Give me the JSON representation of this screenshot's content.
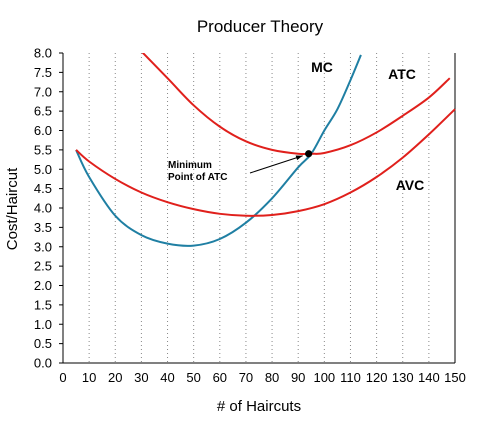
{
  "chart_data": {
    "type": "line",
    "title": "Producer Theory",
    "xlabel": "# of Haircuts",
    "ylabel": "Cost/Haircut",
    "xlim": [
      0,
      150
    ],
    "ylim": [
      0,
      8
    ],
    "x_ticks": [
      0,
      10,
      20,
      30,
      40,
      50,
      60,
      70,
      80,
      90,
      100,
      110,
      120,
      130,
      140,
      150
    ],
    "y_ticks": [
      "0.0",
      "0.5",
      "1.0",
      "1.5",
      "2.0",
      "2.5",
      "3.0",
      "3.5",
      "4.0",
      "4.5",
      "5.0",
      "5.5",
      "6.0",
      "6.5",
      "7.0",
      "7.5",
      "8.0"
    ],
    "grid": {
      "vertical": "dotted",
      "horizontal": false
    },
    "series": [
      {
        "name": "MC",
        "color": "#1f7fa3",
        "points": [
          [
            5,
            5.5
          ],
          [
            10,
            4.8
          ],
          [
            20,
            3.8
          ],
          [
            30,
            3.3
          ],
          [
            40,
            3.08
          ],
          [
            50,
            3.03
          ],
          [
            60,
            3.2
          ],
          [
            70,
            3.62
          ],
          [
            80,
            4.25
          ],
          [
            90,
            5.05
          ],
          [
            95,
            5.4
          ],
          [
            100,
            6.0
          ],
          [
            105,
            6.55
          ],
          [
            110,
            7.3
          ],
          [
            114,
            7.95
          ]
        ]
      },
      {
        "name": "ATC",
        "color": "#e0201c",
        "points": [
          [
            27,
            8.25
          ],
          [
            40,
            7.35
          ],
          [
            50,
            6.65
          ],
          [
            60,
            6.1
          ],
          [
            70,
            5.72
          ],
          [
            80,
            5.5
          ],
          [
            90,
            5.4
          ],
          [
            95,
            5.4
          ],
          [
            100,
            5.42
          ],
          [
            110,
            5.62
          ],
          [
            120,
            5.95
          ],
          [
            130,
            6.38
          ],
          [
            140,
            6.85
          ],
          [
            148,
            7.35
          ]
        ]
      },
      {
        "name": "AVC",
        "color": "#e0201c",
        "points": [
          [
            5,
            5.5
          ],
          [
            10,
            5.2
          ],
          [
            20,
            4.75
          ],
          [
            30,
            4.4
          ],
          [
            40,
            4.15
          ],
          [
            50,
            3.97
          ],
          [
            60,
            3.85
          ],
          [
            70,
            3.8
          ],
          [
            80,
            3.82
          ],
          [
            90,
            3.92
          ],
          [
            100,
            4.1
          ],
          [
            110,
            4.4
          ],
          [
            120,
            4.8
          ],
          [
            130,
            5.3
          ],
          [
            140,
            5.9
          ],
          [
            150,
            6.55
          ]
        ]
      }
    ],
    "annotations": [
      {
        "text_lines": [
          "Minimum",
          "Point of ATC"
        ],
        "points_to": [
          94,
          5.4
        ]
      }
    ],
    "marker": {
      "x": 94,
      "y": 5.4,
      "color": "#000000"
    }
  }
}
